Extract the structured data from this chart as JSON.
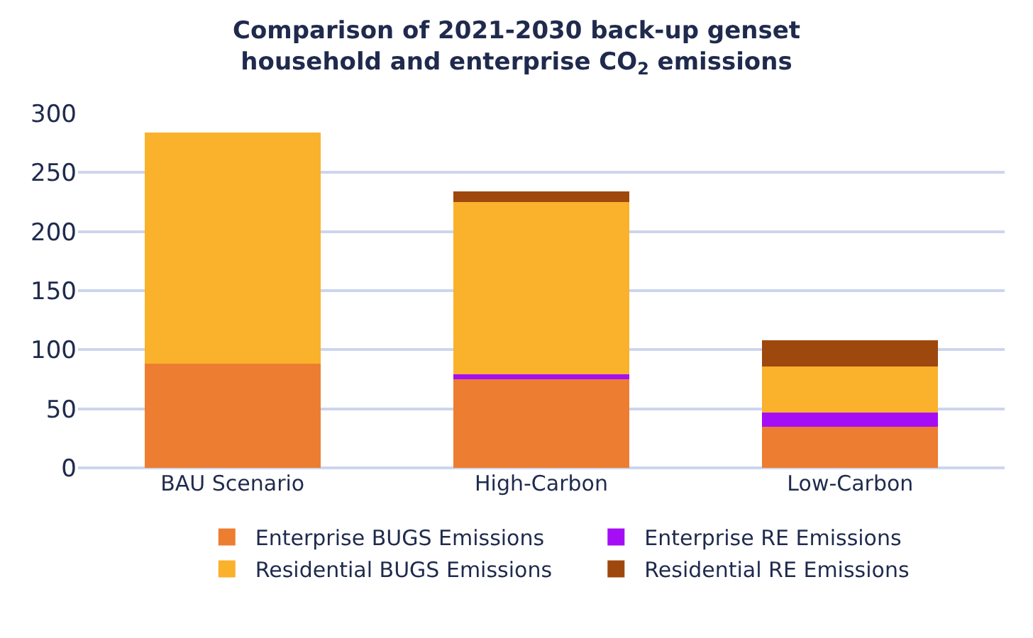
{
  "chart_data": {
    "type": "bar",
    "title": "Comparison of 2021-2030 back-up genset\nhousehold and enterprise CO$_{2}$ emissions",
    "categories": [
      "BAU Scenario",
      "High-Carbon",
      "Low-Carbon"
    ],
    "stacked": true,
    "series": [
      {
        "name": "Enterprise BUGS Emissions",
        "color": "#ed7d31",
        "values": [
          88,
          75,
          35
        ]
      },
      {
        "name": "Enterprise RE Emissions",
        "color": "#a50ef5",
        "values": [
          0,
          4,
          12
        ]
      },
      {
        "name": "Residential BUGS Emissions",
        "color": "#fab12b",
        "values": [
          196,
          146,
          39
        ]
      },
      {
        "name": "Residential RE Emissions",
        "color": "#9e480e",
        "values": [
          0,
          9,
          22
        ]
      }
    ],
    "ylim": [
      0,
      300
    ],
    "yticks": [
      0,
      50,
      100,
      150,
      200,
      250,
      300
    ],
    "grid": "y",
    "legend": "bottom"
  }
}
